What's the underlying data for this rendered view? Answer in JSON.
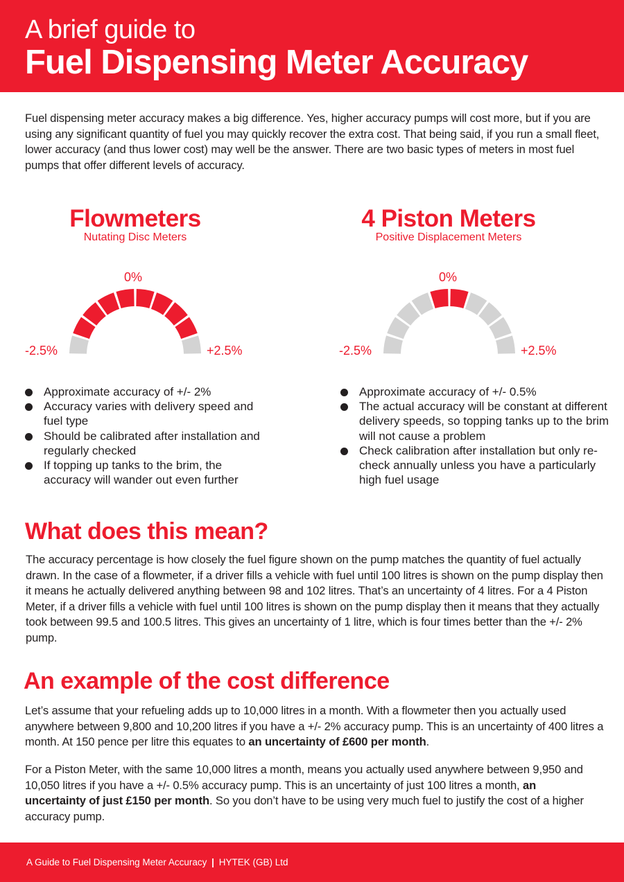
{
  "header": {
    "kicker": "A brief guide to",
    "title": "Fuel Dispensing Meter Accuracy"
  },
  "intro": "Fuel dispensing meter accuracy makes a big difference. Yes, higher accuracy pumps will cost more, but if you are using any significant quantity of fuel you may quickly recover the extra cost. That being said, if you run a small fleet, lower accuracy (and thus lower cost) may well be the answer.  There are two basic types of meters in most fuel pumps that offer different levels of accuracy.",
  "columns": [
    {
      "title": "Flowmeters",
      "subtitle": "Nutating Disc Meters",
      "gauge": {
        "center_label": "0%",
        "left_label": "-2.5%",
        "right_label": "+2.5%",
        "segments": 10,
        "active_segments": [
          1,
          2,
          3,
          4,
          5,
          6,
          7,
          8
        ]
      },
      "bullets": [
        "Approximate accuracy of +/- 2%",
        "Accuracy varies with delivery speed and fuel type",
        "Should be calibrated after installation and regularly checked",
        "If topping up tanks to the brim, the accuracy will wander out even further"
      ]
    },
    {
      "title": "4 Piston Meters",
      "subtitle": "Positive Displacement Meters",
      "gauge": {
        "center_label": "0%",
        "left_label": "-2.5%",
        "right_label": "+2.5%",
        "segments": 10,
        "active_segments": [
          4,
          5
        ]
      },
      "bullets": [
        "Approximate accuracy of +/- 0.5%",
        "The actual accuracy will be constant at different delivery speeds, so topping tanks up to the brim will not cause a problem",
        "Check calibration after installation but only re-check annually unless you have a particularly high fuel usage"
      ]
    }
  ],
  "meaning": {
    "heading": "What does this mean?",
    "body": "The accuracy percentage is how closely the fuel figure shown on the pump matches the quantity of fuel actually drawn. In the case of a flowmeter, if a driver fills a vehicle with fuel until 100 litres is shown on the pump display then it means he actually delivered anything between 98 and 102 litres. That’s an uncertainty of 4 litres. For a 4 Piston Meter, if a driver fills a vehicle with fuel until 100 litres is shown on the pump display then it means that they actually took between 99.5 and 100.5 litres. This gives an uncertainty of 1 litre,  which is four times better than the +/- 2% pump."
  },
  "cost": {
    "heading": "An example of the cost difference",
    "p1_text": "Let’s assume that your refueling adds up to 10,000 litres in a month. With a flowmeter then you actually used anywhere between 9,800 and 10,200 litres if you have a +/- 2% accuracy pump. This is an uncertainty of 400 litres a month. At 150 pence per litre this equates to ",
    "p1_bold": "an uncertainty of £600 per month",
    "p1_end": ".",
    "p2_text": "For a Piston Meter, with the same 10,000 litres a month, means you actually used anywhere between 9,950 and 10,050 litres if you have a +/- 0.5% accuracy pump. This is an uncertainty of just 100 litres a month, ",
    "p2_bold": "an uncertainty of just £150 per month",
    "p2_end": ". So you don’t have to be using very much fuel to justify the cost of a higher accuracy pump."
  },
  "footer": {
    "left": "A Guide to Fuel Dispensing Meter Accuracy",
    "separator": "|",
    "right": "HYTEK (GB) Ltd"
  },
  "colors": {
    "brand_red": "#ed1c2e",
    "gauge_inactive": "#d3d3d3",
    "text": "#231f20"
  }
}
